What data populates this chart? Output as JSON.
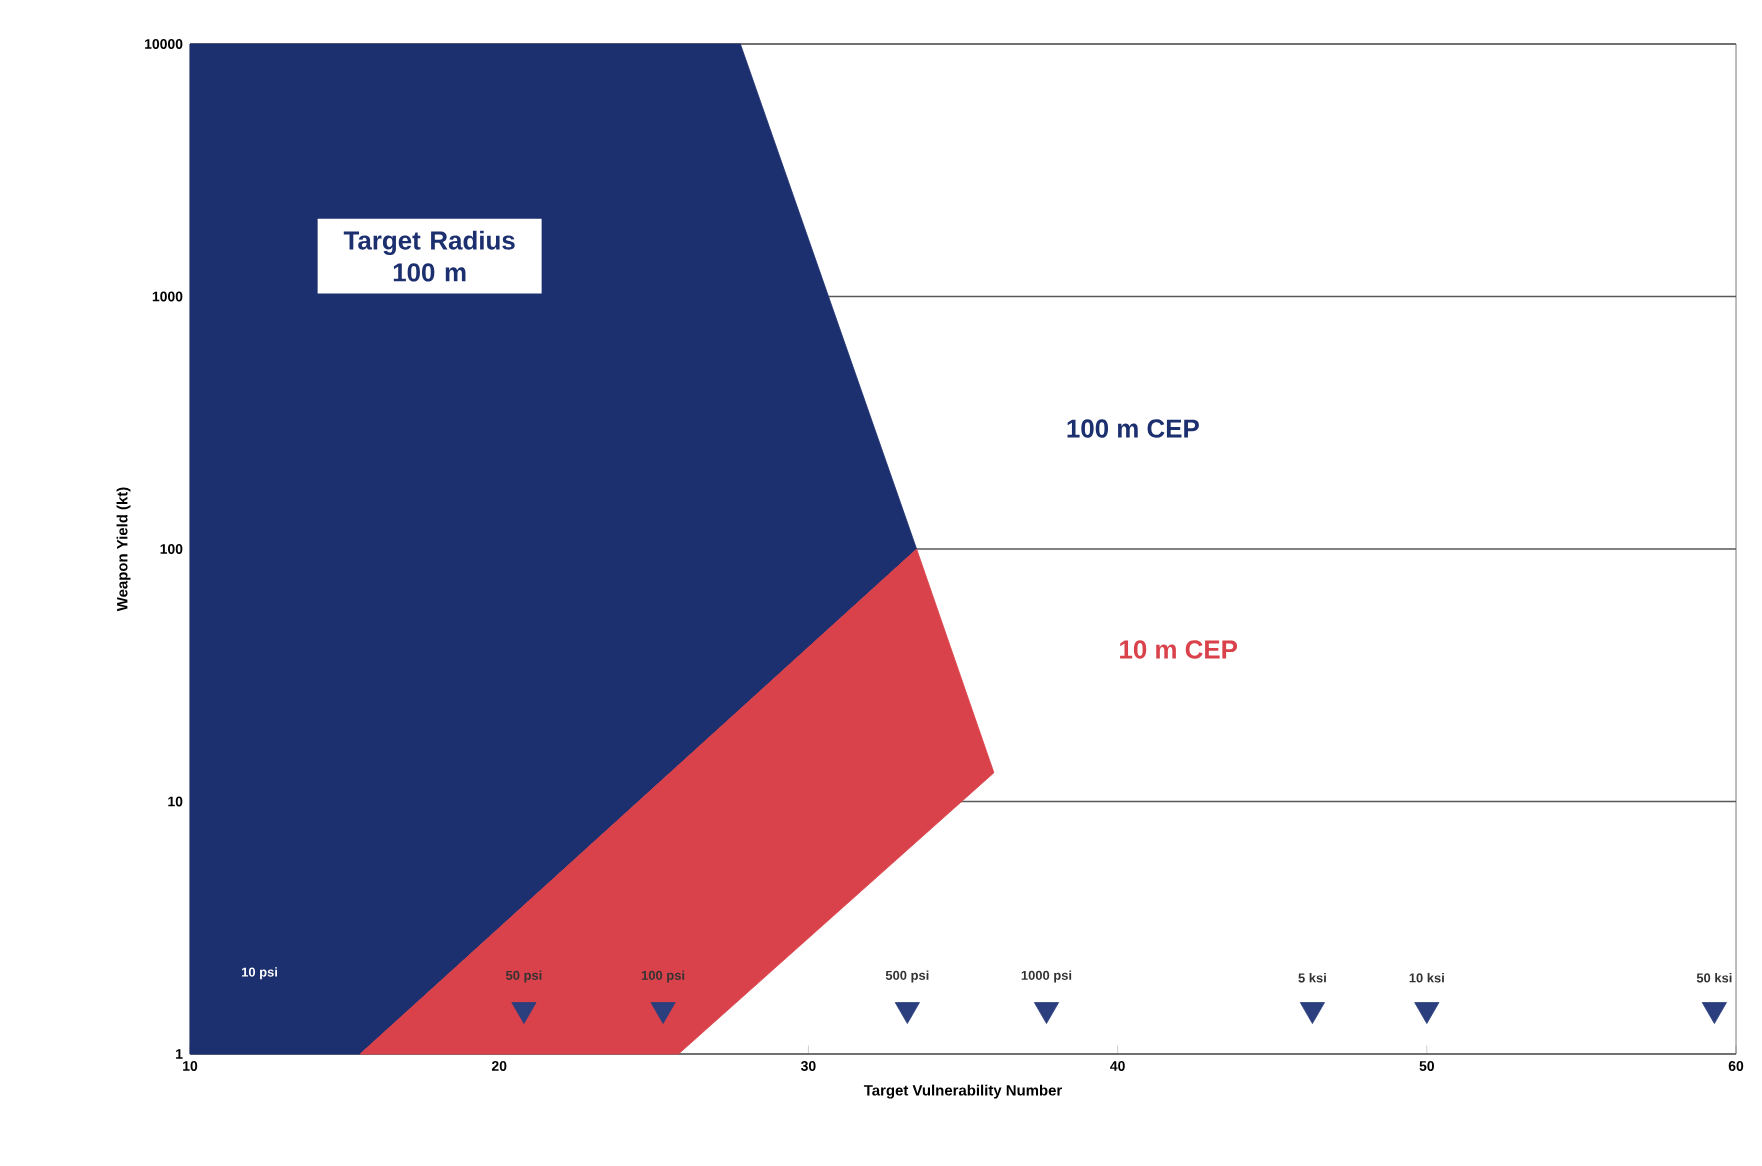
{
  "chart_data": {
    "type": "area",
    "xlabel": "Target Vulnerability Number",
    "ylabel": "Weapon Yield (kt)",
    "log": "y",
    "grid": "y",
    "xlim": [
      10,
      60
    ],
    "ylim": [
      1,
      10000
    ],
    "xticks": [
      10,
      20,
      30,
      40,
      50,
      60
    ],
    "yticks": [
      1,
      10,
      100,
      1000,
      10000
    ],
    "series": [
      {
        "name": "100 m CEP",
        "color": "#1c2f6e",
        "x": [
          10,
          10,
          27.8,
          33.5,
          15.5
        ],
        "values": [
          1,
          10000,
          10000,
          100,
          1
        ]
      },
      {
        "name": "10 m CEP",
        "color": "#d9424a",
        "x": [
          15.5,
          33.5,
          36,
          25.8
        ],
        "values": [
          1,
          100,
          13,
          1
        ]
      },
      {
        "type": "scatter",
        "marker": "triangle",
        "color": "#2b3f7e",
        "x": [
          20.8,
          25.3,
          33.2,
          37.7,
          46.3,
          50,
          59.3
        ],
        "values": [
          1.5,
          1.5,
          1.5,
          1.5,
          1.5,
          1.5,
          1.5
        ]
      }
    ],
    "annotations": [
      "Target Radius 100 m",
      "10 psi",
      {
        "text": "50 psi",
        "x": 20.8,
        "y": 1.5
      },
      {
        "text": "100 psi",
        "x": 25.3,
        "y": 1.5
      },
      {
        "text": "500 psi",
        "x": 33.2,
        "y": 1.5
      },
      {
        "text": "1000 psi",
        "x": 37.7,
        "y": 1.5
      },
      {
        "text": "5 ksi",
        "x": 46.3,
        "y": 1.5
      },
      {
        "text": "10 ksi",
        "x": 50,
        "y": 1.5
      },
      {
        "text": "50 ksi",
        "x": 59.3,
        "y": 1.5
      }
    ]
  }
}
